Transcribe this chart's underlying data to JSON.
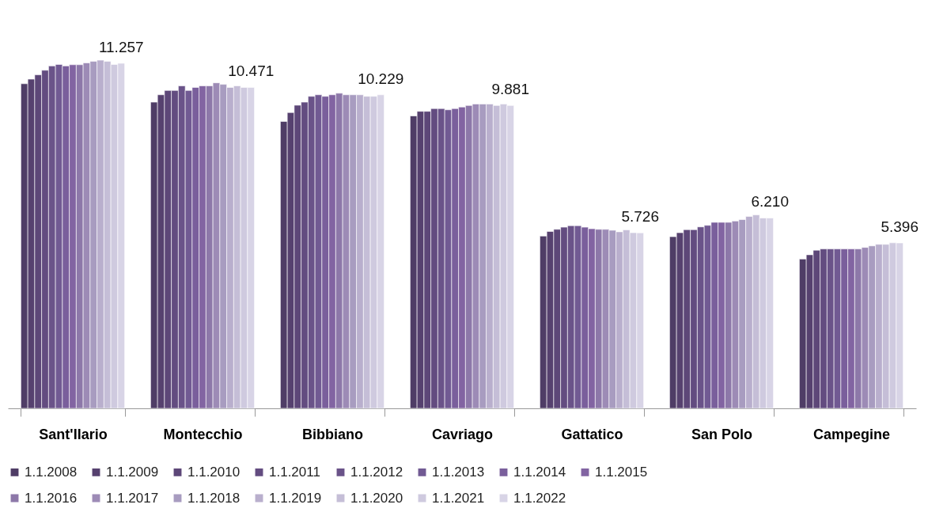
{
  "chart_data": {
    "type": "bar",
    "categories": [
      "Sant'Ilario",
      "Montecchio",
      "Bibbiano",
      "Cavriago",
      "Gattatico",
      "San Polo",
      "Campegine"
    ],
    "legend": "bottom",
    "grid": false,
    "series": [
      {
        "name": "1.1.2008",
        "color": "#4f3d66",
        "values": [
          10590,
          9990,
          9360,
          9540,
          5620,
          5600,
          4870
        ]
      },
      {
        "name": "1.1.2009",
        "color": "#56416f",
        "values": [
          10740,
          10230,
          9650,
          9690,
          5770,
          5730,
          5010
        ]
      },
      {
        "name": "1.1.2010",
        "color": "#5d4778",
        "values": [
          10880,
          10370,
          9890,
          9690,
          5840,
          5830,
          5160
        ]
      },
      {
        "name": "1.1.2011",
        "color": "#634c80",
        "values": [
          11030,
          10370,
          9990,
          9780,
          5910,
          5830,
          5200
        ]
      },
      {
        "name": "1.1.2012",
        "color": "#6a5389",
        "values": [
          11170,
          10520,
          10180,
          9780,
          5960,
          5920,
          5200
        ]
      },
      {
        "name": "1.1.2013",
        "color": "#715a93",
        "values": [
          11220,
          10370,
          10230,
          9740,
          5960,
          5970,
          5200
        ]
      },
      {
        "name": "1.1.2014",
        "color": "#7a5f9c",
        "values": [
          11170,
          10470,
          10180,
          9780,
          5910,
          6070,
          5200
        ]
      },
      {
        "name": "1.1.2015",
        "color": "#8264a2",
        "values": [
          11210,
          10520,
          10230,
          9830,
          5860,
          6070,
          5200
        ]
      },
      {
        "name": "1.1.2016",
        "color": "#8d78a9",
        "values": [
          11210,
          10520,
          10280,
          9880,
          5840,
          6070,
          5200
        ]
      },
      {
        "name": "1.1.2017",
        "color": "#9d8bb6",
        "values": [
          11270,
          10620,
          10230,
          9930,
          5840,
          6110,
          5250
        ]
      },
      {
        "name": "1.1.2018",
        "color": "#a89cc0",
        "values": [
          11320,
          10570,
          10230,
          9930,
          5810,
          6160,
          5300
        ]
      },
      {
        "name": "1.1.2019",
        "color": "#b9afcd",
        "values": [
          11360,
          10470,
          10230,
          9930,
          5760,
          6260,
          5350
        ]
      },
      {
        "name": "1.1.2020",
        "color": "#c5bed7",
        "values": [
          11320,
          10520,
          10180,
          9880,
          5820,
          6310,
          5350
        ]
      },
      {
        "name": "1.1.2021",
        "color": "#cfcadf",
        "values": [
          11220,
          10470,
          10180,
          9930,
          5730,
          6210,
          5400
        ]
      },
      {
        "name": "1.1.2022",
        "color": "#d8d4e6",
        "values": [
          11257,
          10471,
          10229,
          9881,
          5726,
          6210,
          5396
        ],
        "value_labels": [
          "11.257",
          "10.471",
          "10.229",
          "9.881",
          "5.726",
          "6.210",
          "5.396"
        ]
      }
    ]
  }
}
